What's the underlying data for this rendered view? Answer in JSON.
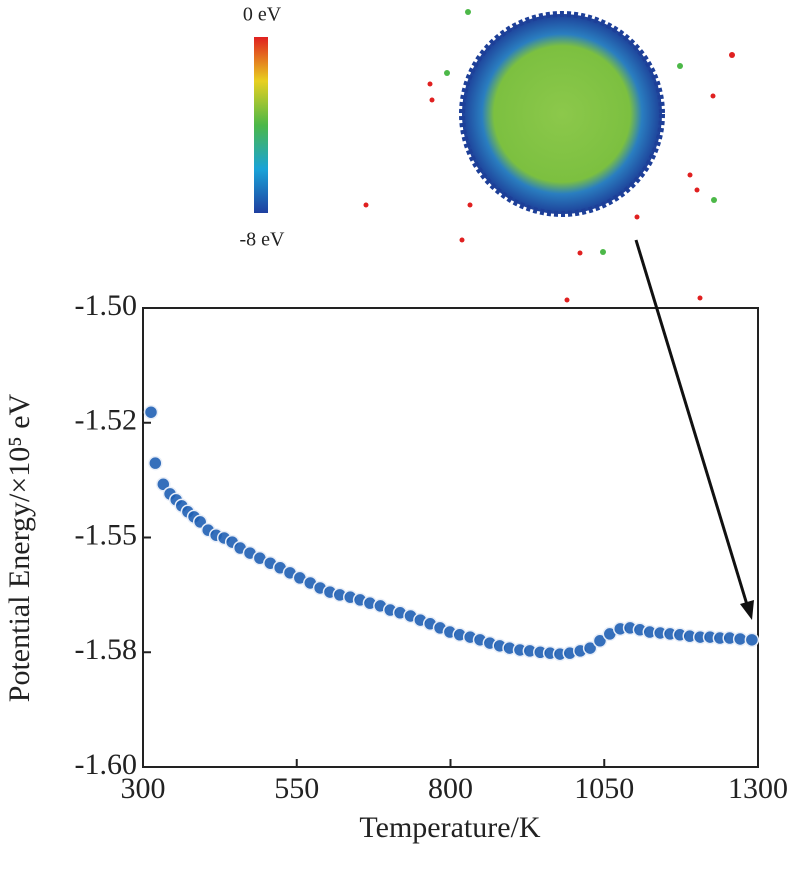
{
  "colorbar": {
    "top_label": "0 eV",
    "bottom_label": "-8 eV"
  },
  "chart_data": {
    "type": "scatter",
    "x_label": "Temperature/K",
    "y_label": "Potential Energy/×10⁵ eV",
    "color": "#1f5fb4",
    "xlim": [
      300,
      1300
    ],
    "xticks": [
      300,
      550,
      800,
      1050,
      1300
    ],
    "ylim": [
      -1.6,
      -1.5
    ],
    "yticks": [
      {
        "value": -1.6,
        "label": "-1.60"
      },
      {
        "value": -1.575,
        "label": "-1.58"
      },
      {
        "value": -1.55,
        "label": "-1.55"
      },
      {
        "value": -1.525,
        "label": "-1.52"
      },
      {
        "value": -1.5,
        "label": "-1.50"
      }
    ],
    "x": [
      313,
      320,
      333,
      344,
      354,
      363,
      373,
      383,
      393,
      406,
      419,
      432,
      445,
      458,
      474,
      490,
      507,
      523,
      539,
      555,
      572,
      588,
      604,
      620,
      637,
      653,
      669,
      686,
      702,
      718,
      735,
      751,
      767,
      783,
      799,
      815,
      832,
      848,
      864,
      880,
      896,
      913,
      929,
      946,
      962,
      978,
      994,
      1011,
      1027,
      1043,
      1059,
      1076,
      1092,
      1108,
      1124,
      1141,
      1157,
      1173,
      1189,
      1206,
      1222,
      1238,
      1254,
      1271,
      1290
    ],
    "values": [
      -1.5227,
      -1.5338,
      -1.5384,
      -1.5405,
      -1.5418,
      -1.5431,
      -1.5444,
      -1.5455,
      -1.5466,
      -1.5484,
      -1.5495,
      -1.5501,
      -1.551,
      -1.5523,
      -1.5534,
      -1.5545,
      -1.5556,
      -1.5566,
      -1.5577,
      -1.5588,
      -1.5599,
      -1.561,
      -1.5619,
      -1.5625,
      -1.563,
      -1.5636,
      -1.5643,
      -1.5649,
      -1.5658,
      -1.5664,
      -1.5671,
      -1.568,
      -1.5688,
      -1.5697,
      -1.5706,
      -1.5712,
      -1.5717,
      -1.5723,
      -1.573,
      -1.5736,
      -1.5741,
      -1.5745,
      -1.5747,
      -1.575,
      -1.5752,
      -1.5754,
      -1.5752,
      -1.5747,
      -1.5741,
      -1.5725,
      -1.571,
      -1.5699,
      -1.5697,
      -1.5701,
      -1.5706,
      -1.5708,
      -1.571,
      -1.5712,
      -1.5715,
      -1.5717,
      -1.5717,
      -1.5719,
      -1.5719,
      -1.5721,
      -1.5723
    ]
  }
}
